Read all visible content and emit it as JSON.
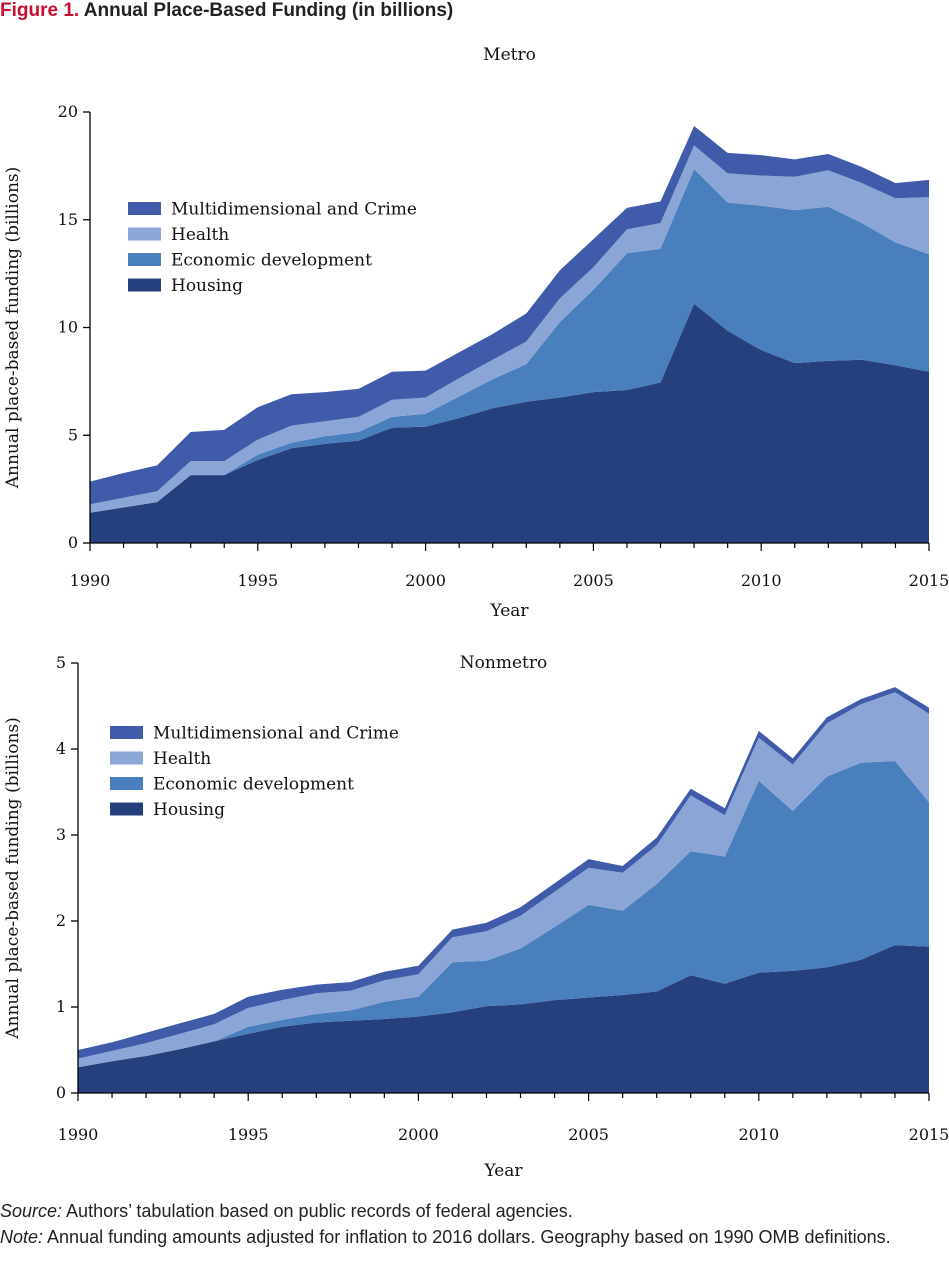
{
  "figure": {
    "label": "Figure 1.",
    "title": "Annual Place-Based Funding (in billions)"
  },
  "colors": {
    "Housing": "#263f7d",
    "Economic development": "#4a7fbe",
    "Health": "#8ba6d6",
    "Multidimensional and Crime": "#3f5ba9"
  },
  "chart_data": [
    {
      "type": "area",
      "stacked": true,
      "title": "Metro",
      "xlabel": "Year",
      "ylabel": "Annual place-based funding (billions)",
      "xlim": [
        1990,
        2015
      ],
      "ylim": [
        0,
        20
      ],
      "xticks": [
        "1990",
        "1995",
        "2000",
        "2005",
        "2010",
        "2015"
      ],
      "yticks": [
        "0",
        "5",
        "10",
        "15",
        "20"
      ],
      "grid": false,
      "legend": "upper-left",
      "legend_order": [
        "Multidimensional and Crime",
        "Health",
        "Economic development",
        "Housing"
      ],
      "x": [
        1990,
        1991,
        1992,
        1993,
        1994,
        1995,
        1996,
        1997,
        1998,
        1999,
        2000,
        2001,
        2002,
        2003,
        2004,
        2005,
        2006,
        2007,
        2008,
        2009,
        2010,
        2011,
        2012,
        2013,
        2014,
        2015
      ],
      "series": [
        {
          "name": "Housing",
          "values": [
            1.4,
            1.65,
            1.9,
            3.15,
            3.15,
            3.85,
            4.4,
            4.6,
            4.75,
            5.35,
            5.4,
            5.8,
            6.25,
            6.55,
            6.75,
            7.0,
            7.1,
            7.45,
            11.1,
            9.85,
            8.95,
            8.35,
            8.45,
            8.5,
            8.25,
            7.95
          ]
        },
        {
          "name": "Economic development",
          "values": [
            0.0,
            0.0,
            0.0,
            0.0,
            0.0,
            0.25,
            0.25,
            0.35,
            0.4,
            0.5,
            0.6,
            1.0,
            1.35,
            1.75,
            3.5,
            4.75,
            6.35,
            6.2,
            6.25,
            5.95,
            6.7,
            7.1,
            7.15,
            6.35,
            5.7,
            5.45
          ]
        },
        {
          "name": "Health",
          "values": [
            0.4,
            0.45,
            0.5,
            0.65,
            0.65,
            0.7,
            0.8,
            0.7,
            0.7,
            0.8,
            0.75,
            0.85,
            0.9,
            1.05,
            1.1,
            1.05,
            1.1,
            1.2,
            1.1,
            1.35,
            1.4,
            1.55,
            1.7,
            1.85,
            2.05,
            2.65
          ]
        },
        {
          "name": "Multidimensional and Crime",
          "values": [
            1.05,
            1.15,
            1.2,
            1.35,
            1.45,
            1.5,
            1.45,
            1.35,
            1.3,
            1.3,
            1.25,
            1.2,
            1.2,
            1.3,
            1.3,
            1.3,
            1.0,
            1.0,
            0.9,
            0.95,
            0.95,
            0.8,
            0.75,
            0.75,
            0.7,
            0.8
          ]
        }
      ]
    },
    {
      "type": "area",
      "stacked": true,
      "title": "Nonmetro",
      "xlabel": "Year",
      "ylabel": "Annual place-based funding (billions)",
      "xlim": [
        1990,
        2015
      ],
      "ylim": [
        0,
        5
      ],
      "xticks": [
        "1990",
        "1995",
        "2000",
        "2005",
        "2010",
        "2015"
      ],
      "yticks": [
        "0",
        "1",
        "2",
        "3",
        "4",
        "5"
      ],
      "grid": false,
      "legend": "upper-left",
      "legend_order": [
        "Multidimensional and Crime",
        "Health",
        "Economic development",
        "Housing"
      ],
      "x": [
        1990,
        1991,
        1992,
        1993,
        1994,
        1995,
        1996,
        1997,
        1998,
        1999,
        2000,
        2001,
        2002,
        2003,
        2004,
        2005,
        2006,
        2007,
        2008,
        2009,
        2010,
        2011,
        2012,
        2013,
        2014,
        2015
      ],
      "series": [
        {
          "name": "Housing",
          "values": [
            0.3,
            0.37,
            0.43,
            0.51,
            0.6,
            0.69,
            0.77,
            0.82,
            0.84,
            0.86,
            0.89,
            0.94,
            1.01,
            1.03,
            1.08,
            1.11,
            1.14,
            1.18,
            1.37,
            1.27,
            1.4,
            1.42,
            1.46,
            1.55,
            1.72,
            1.7
          ]
        },
        {
          "name": "Economic development",
          "values": [
            0.0,
            0.0,
            0.0,
            0.0,
            0.0,
            0.08,
            0.08,
            0.1,
            0.12,
            0.2,
            0.23,
            0.58,
            0.53,
            0.65,
            0.85,
            1.08,
            0.98,
            1.25,
            1.44,
            1.48,
            2.23,
            1.86,
            2.22,
            2.29,
            2.14,
            1.68
          ]
        },
        {
          "name": "Health",
          "values": [
            0.1,
            0.12,
            0.15,
            0.18,
            0.2,
            0.22,
            0.23,
            0.24,
            0.23,
            0.25,
            0.26,
            0.29,
            0.34,
            0.38,
            0.41,
            0.43,
            0.44,
            0.45,
            0.65,
            0.48,
            0.5,
            0.54,
            0.62,
            0.68,
            0.8,
            1.03
          ]
        },
        {
          "name": "Multidimensional and Crime",
          "values": [
            0.1,
            0.1,
            0.12,
            0.12,
            0.12,
            0.13,
            0.12,
            0.1,
            0.1,
            0.1,
            0.1,
            0.09,
            0.1,
            0.1,
            0.1,
            0.1,
            0.08,
            0.09,
            0.08,
            0.08,
            0.08,
            0.07,
            0.07,
            0.06,
            0.06,
            0.07
          ]
        }
      ]
    }
  ],
  "footnotes": {
    "source_label": "Source:",
    "source_text": " Authors’ tabulation based on public records of federal agencies.",
    "note_label": "Note:",
    "note_text": " Annual funding amounts adjusted for inflation to 2016 dollars. Geography based on 1990 OMB definitions."
  }
}
